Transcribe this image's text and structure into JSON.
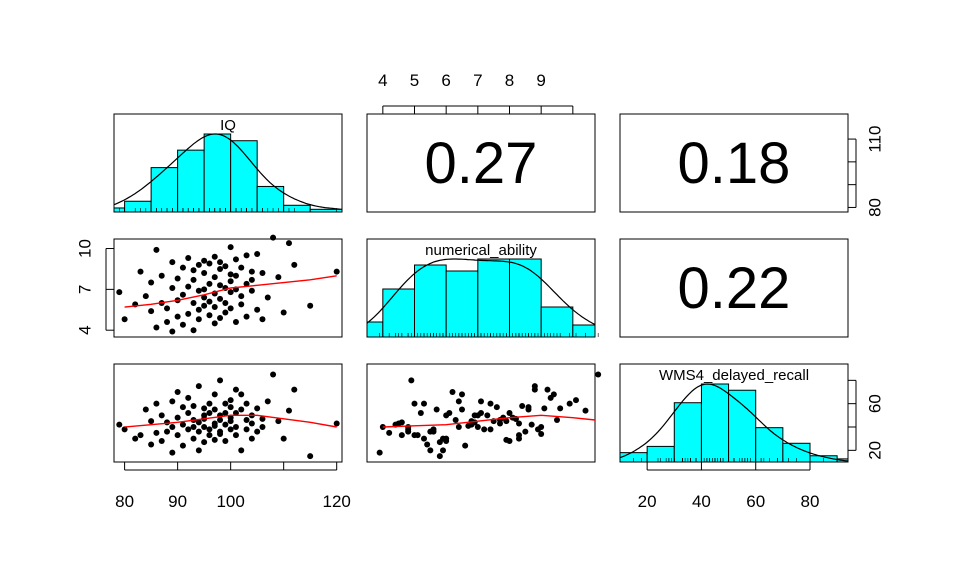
{
  "chart_data": {
    "type": "scatter",
    "subtype": "pairs-matrix",
    "variables": [
      "IQ",
      "numerical_ability",
      "WMS4_delayed_recall"
    ],
    "colors": {
      "hist_fill": "#00FFFF",
      "loess": "#FF0000",
      "points": "#000000",
      "density": "#000000"
    },
    "axes": {
      "IQ": {
        "ticks": [
          "80",
          "90",
          "100",
          "120"
        ],
        "tick_values": [
          80,
          90,
          100,
          110,
          120
        ],
        "range": [
          78,
          121
        ]
      },
      "numerical_ability": {
        "ticks": [
          "4",
          "5",
          "6",
          "7",
          "8",
          "9"
        ],
        "tick_values": [
          4,
          5,
          6,
          7,
          8,
          9,
          10
        ],
        "labeled_left": [
          "4",
          "7",
          "10"
        ],
        "range": [
          3.5,
          10.7
        ]
      },
      "WMS4_delayed_recall": {
        "ticks": [
          "20",
          "40",
          "60",
          "80"
        ],
        "tick_values": [
          20,
          40,
          60,
          80
        ],
        "labeled_right": [
          "20",
          "60"
        ],
        "range": [
          10,
          94
        ]
      },
      "IQ_right_labels": [
        "80",
        "110"
      ],
      "IQ_right_ticks": [
        80,
        90,
        100,
        110
      ]
    },
    "correlations": [
      {
        "pair": [
          "IQ",
          "numerical_ability"
        ],
        "value": "0.27"
      },
      {
        "pair": [
          "IQ",
          "WMS4_delayed_recall"
        ],
        "value": "0.18"
      },
      {
        "pair": [
          "numerical_ability",
          "WMS4_delayed_recall"
        ],
        "value": "0.22"
      }
    ],
    "histograms": {
      "IQ": {
        "breaks": [
          78,
          80,
          85,
          90,
          95,
          100,
          105,
          110,
          115,
          121
        ],
        "density": [
          0.003,
          0.008,
          0.033,
          0.046,
          0.058,
          0.053,
          0.019,
          0.005,
          0.002
        ]
      },
      "numerical_ability": {
        "breaks": [
          3.5,
          4,
          5,
          6,
          7,
          8,
          9,
          10,
          10.7
        ],
        "density": [
          0.05,
          0.16,
          0.24,
          0.22,
          0.26,
          0.26,
          0.1,
          0.04
        ]
      },
      "WMS4_delayed_recall": {
        "breaks": [
          10,
          20,
          30,
          40,
          50,
          60,
          70,
          80,
          90,
          94
        ],
        "density": [
          0.003,
          0.005,
          0.019,
          0.025,
          0.023,
          0.011,
          0.006,
          0.002,
          0.001
        ]
      }
    },
    "samples": {
      "IQ": [
        79,
        80,
        82,
        83,
        84,
        85,
        85,
        86,
        86,
        87,
        87,
        88,
        88,
        89,
        89,
        89,
        90,
        90,
        90,
        91,
        91,
        91,
        92,
        92,
        92,
        93,
        93,
        93,
        93,
        94,
        94,
        94,
        94,
        95,
        95,
        95,
        95,
        95,
        96,
        96,
        96,
        96,
        97,
        97,
        97,
        97,
        97,
        98,
        98,
        98,
        98,
        98,
        99,
        99,
        99,
        99,
        100,
        100,
        100,
        100,
        100,
        101,
        101,
        101,
        101,
        102,
        102,
        102,
        103,
        103,
        103,
        104,
        104,
        104,
        105,
        105,
        106,
        106,
        107,
        108,
        109,
        110,
        111,
        112,
        115,
        120
      ],
      "numerical_ability": [
        6.8,
        4.8,
        5.9,
        8.3,
        6.5,
        7.5,
        5.4,
        9.9,
        4.2,
        6.0,
        8.0,
        4.6,
        5.6,
        7.1,
        3.9,
        9.0,
        6.2,
        7.8,
        5.0,
        8.6,
        4.4,
        6.6,
        7.2,
        5.2,
        9.3,
        6.0,
        7.7,
        4.0,
        8.4,
        5.5,
        6.9,
        8.8,
        4.8,
        7.0,
        5.8,
        9.1,
        6.4,
        8.2,
        5.1,
        7.4,
        6.1,
        8.9,
        4.5,
        9.4,
        7.9,
        5.7,
        6.7,
        8.5,
        4.9,
        7.3,
        6.3,
        9.0,
        5.3,
        8.7,
        7.1,
        6.0,
        10.1,
        8.1,
        5.6,
        7.6,
        6.8,
        9.2,
        4.6,
        8.0,
        7.0,
        5.9,
        8.6,
        6.5,
        9.5,
        7.4,
        5.0,
        8.3,
        6.9,
        7.7,
        5.5,
        9.6,
        4.8,
        8.2,
        6.4,
        10.8,
        7.9,
        5.3,
        10.4,
        8.8,
        5.8,
        8.3
      ],
      "WMS4_delayed_recall": [
        42,
        38,
        30,
        33,
        55,
        45,
        25,
        60,
        35,
        50,
        28,
        44,
        36,
        62,
        18,
        40,
        70,
        48,
        33,
        57,
        42,
        24,
        38,
        52,
        65,
        30,
        46,
        40,
        58,
        20,
        44,
        75,
        36,
        50,
        27,
        56,
        40,
        47,
        33,
        60,
        52,
        38,
        43,
        68,
        29,
        55,
        41,
        36,
        80,
        50,
        46,
        34,
        60,
        42,
        52,
        28,
        63,
        48,
        38,
        57,
        45,
        72,
        33,
        52,
        40,
        20,
        55,
        68,
        46,
        38,
        60,
        30,
        50,
        43,
        36,
        56,
        40,
        47,
        62,
        85,
        45,
        30,
        54,
        72,
        15,
        43
      ]
    },
    "loess": {
      "IQ_vs_numerical_ability": {
        "x": [
          80,
          85,
          90,
          95,
          100,
          105,
          110,
          115,
          120
        ],
        "y": [
          5.7,
          5.9,
          6.2,
          6.6,
          7.1,
          7.3,
          7.5,
          7.7,
          8.0
        ]
      },
      "IQ_vs_WMS4_delayed_recall": {
        "x": [
          80,
          85,
          90,
          95,
          100,
          105,
          110,
          115,
          120
        ],
        "y": [
          40,
          42,
          44,
          47,
          50,
          50,
          47,
          44,
          40
        ]
      },
      "numerical_ability_vs_WMS4_delayed_recall": {
        "x": [
          4,
          5,
          6,
          7,
          8,
          9,
          10,
          10.7
        ],
        "y": [
          40,
          41,
          42,
          45,
          48,
          50,
          48,
          46
        ]
      }
    }
  }
}
